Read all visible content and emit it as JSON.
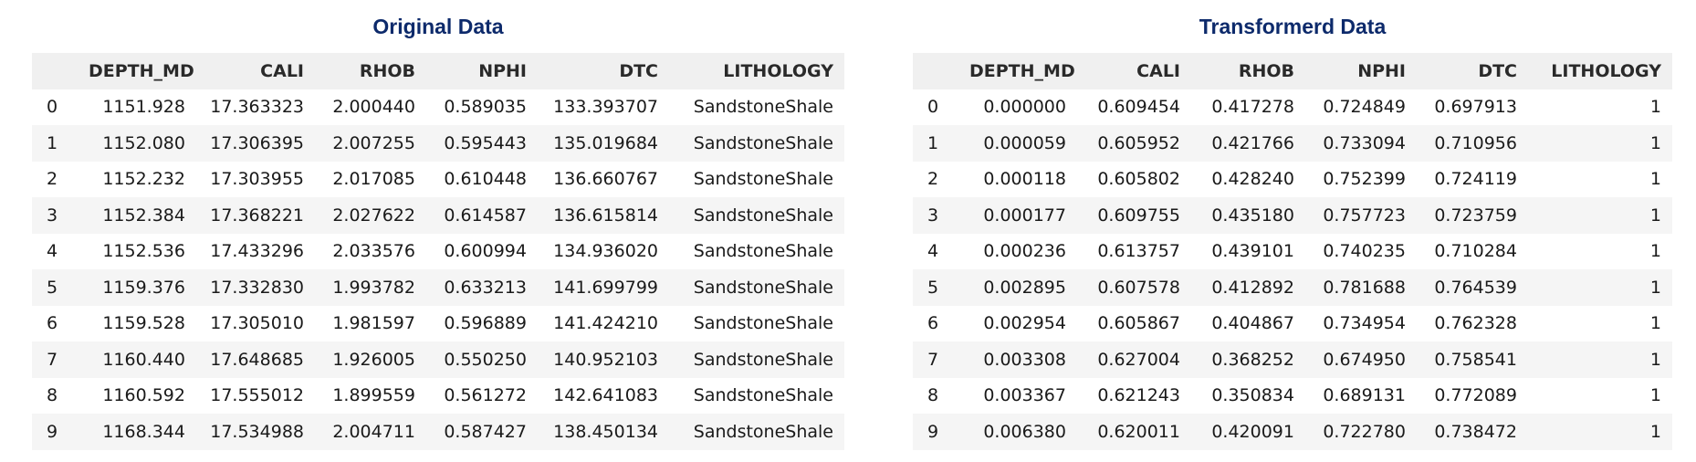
{
  "original": {
    "title": "Original Data",
    "columns": [
      "",
      "DEPTH_MD",
      "CALI",
      "RHOB",
      "NPHI",
      "DTC",
      "LITHOLOGY"
    ],
    "rows": [
      [
        "0",
        "1151.928",
        "17.363323",
        "2.000440",
        "0.589035",
        "133.393707",
        "SandstoneShale"
      ],
      [
        "1",
        "1152.080",
        "17.306395",
        "2.007255",
        "0.595443",
        "135.019684",
        "SandstoneShale"
      ],
      [
        "2",
        "1152.232",
        "17.303955",
        "2.017085",
        "0.610448",
        "136.660767",
        "SandstoneShale"
      ],
      [
        "3",
        "1152.384",
        "17.368221",
        "2.027622",
        "0.614587",
        "136.615814",
        "SandstoneShale"
      ],
      [
        "4",
        "1152.536",
        "17.433296",
        "2.033576",
        "0.600994",
        "134.936020",
        "SandstoneShale"
      ],
      [
        "5",
        "1159.376",
        "17.332830",
        "1.993782",
        "0.633213",
        "141.699799",
        "SandstoneShale"
      ],
      [
        "6",
        "1159.528",
        "17.305010",
        "1.981597",
        "0.596889",
        "141.424210",
        "SandstoneShale"
      ],
      [
        "7",
        "1160.440",
        "17.648685",
        "1.926005",
        "0.550250",
        "140.952103",
        "SandstoneShale"
      ],
      [
        "8",
        "1160.592",
        "17.555012",
        "1.899559",
        "0.561272",
        "142.641083",
        "SandstoneShale"
      ],
      [
        "9",
        "1168.344",
        "17.534988",
        "2.004711",
        "0.587427",
        "138.450134",
        "SandstoneShale"
      ]
    ]
  },
  "transformed": {
    "title": "Transformerd Data",
    "columns": [
      "",
      "DEPTH_MD",
      "CALI",
      "RHOB",
      "NPHI",
      "DTC",
      "LITHOLOGY"
    ],
    "rows": [
      [
        "0",
        "0.000000",
        "0.609454",
        "0.417278",
        "0.724849",
        "0.697913",
        "1"
      ],
      [
        "1",
        "0.000059",
        "0.605952",
        "0.421766",
        "0.733094",
        "0.710956",
        "1"
      ],
      [
        "2",
        "0.000118",
        "0.605802",
        "0.428240",
        "0.752399",
        "0.724119",
        "1"
      ],
      [
        "3",
        "0.000177",
        "0.609755",
        "0.435180",
        "0.757723",
        "0.723759",
        "1"
      ],
      [
        "4",
        "0.000236",
        "0.613757",
        "0.439101",
        "0.740235",
        "0.710284",
        "1"
      ],
      [
        "5",
        "0.002895",
        "0.607578",
        "0.412892",
        "0.781688",
        "0.764539",
        "1"
      ],
      [
        "6",
        "0.002954",
        "0.605867",
        "0.404867",
        "0.734954",
        "0.762328",
        "1"
      ],
      [
        "7",
        "0.003308",
        "0.627004",
        "0.368252",
        "0.674950",
        "0.758541",
        "1"
      ],
      [
        "8",
        "0.003367",
        "0.621243",
        "0.350834",
        "0.689131",
        "0.772089",
        "1"
      ],
      [
        "9",
        "0.006380",
        "0.620011",
        "0.420091",
        "0.722780",
        "0.738472",
        "1"
      ]
    ]
  },
  "colors": {
    "title": "#0d2a6b",
    "header_bg": "#f0f0f0",
    "row_stripe": "#f5f5f5"
  }
}
